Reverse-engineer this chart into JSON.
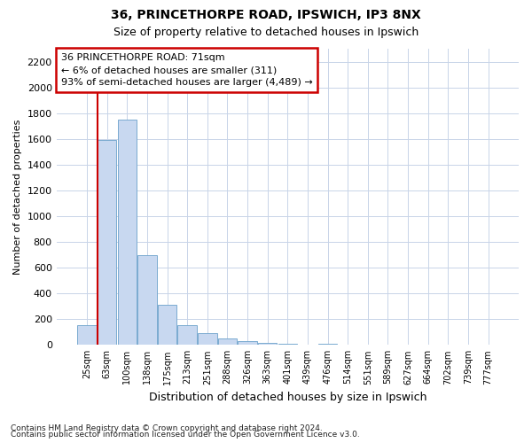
{
  "title_line1": "36, PRINCETHORPE ROAD, IPSWICH, IP3 8NX",
  "title_line2": "Size of property relative to detached houses in Ipswich",
  "xlabel": "Distribution of detached houses by size in Ipswich",
  "ylabel": "Number of detached properties",
  "footnote1": "Contains HM Land Registry data © Crown copyright and database right 2024.",
  "footnote2": "Contains public sector information licensed under the Open Government Licence v3.0.",
  "categories": [
    "25sqm",
    "63sqm",
    "100sqm",
    "138sqm",
    "175sqm",
    "213sqm",
    "251sqm",
    "288sqm",
    "326sqm",
    "363sqm",
    "401sqm",
    "439sqm",
    "476sqm",
    "514sqm",
    "551sqm",
    "589sqm",
    "627sqm",
    "664sqm",
    "702sqm",
    "739sqm",
    "777sqm"
  ],
  "values": [
    155,
    1590,
    1750,
    700,
    315,
    155,
    90,
    47,
    27,
    15,
    10,
    5,
    10,
    0,
    0,
    0,
    0,
    0,
    0,
    0,
    0
  ],
  "bar_color": "#c8d8f0",
  "bar_edge_color": "#7aaad0",
  "red_line_color": "#cc0000",
  "annotation_text_line1": "36 PRINCETHORPE ROAD: 71sqm",
  "annotation_text_line2": "← 6% of detached houses are smaller (311)",
  "annotation_text_line3": "93% of semi-detached houses are larger (4,489) →",
  "annotation_box_facecolor": "#ffffff",
  "annotation_box_edgecolor": "#cc0000",
  "ylim": [
    0,
    2300
  ],
  "yticks": [
    0,
    200,
    400,
    600,
    800,
    1000,
    1200,
    1400,
    1600,
    1800,
    2000,
    2200
  ],
  "grid_color": "#c8d4e8",
  "bg_color": "#ffffff",
  "title1_fontsize": 10,
  "title2_fontsize": 9,
  "ylabel_fontsize": 8,
  "xlabel_fontsize": 9,
  "tick_fontsize": 7,
  "annot_fontsize": 8
}
